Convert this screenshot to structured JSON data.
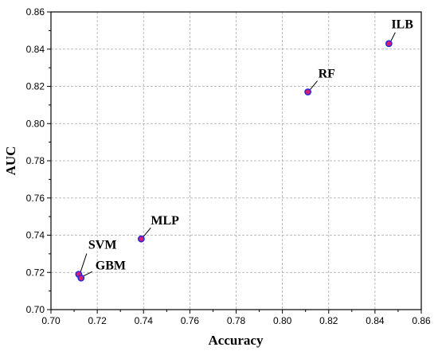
{
  "chart_data": {
    "type": "scatter",
    "xlabel": "Accuracy",
    "ylabel": "AUC",
    "xlim": [
      0.7,
      0.86
    ],
    "ylim": [
      0.7,
      0.86
    ],
    "xticks": [
      "0.70",
      "0.72",
      "0.74",
      "0.76",
      "0.78",
      "0.80",
      "0.82",
      "0.84",
      "0.86"
    ],
    "yticks": [
      "0.70",
      "0.72",
      "0.74",
      "0.76",
      "0.78",
      "0.80",
      "0.82",
      "0.84",
      "0.86"
    ],
    "grid": true,
    "points": [
      {
        "label": "SVM",
        "x": 0.712,
        "y": 0.719
      },
      {
        "label": "GBM",
        "x": 0.713,
        "y": 0.717
      },
      {
        "label": "MLP",
        "x": 0.739,
        "y": 0.738
      },
      {
        "label": "RF",
        "x": 0.811,
        "y": 0.817
      },
      {
        "label": "ILB",
        "x": 0.846,
        "y": 0.843
      }
    ],
    "colors": {
      "marker_fill": "#dd1c77",
      "marker_edge": "#2b2bd6"
    }
  }
}
